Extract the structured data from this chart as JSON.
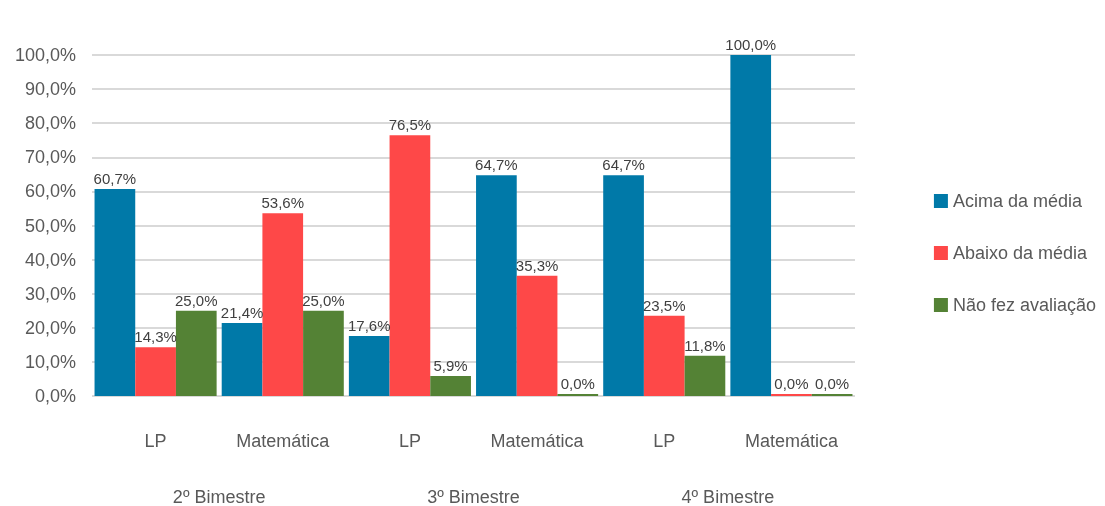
{
  "chart_data": {
    "type": "bar",
    "categories": [
      "LP",
      "Matemática",
      "LP",
      "Matemática",
      "LP",
      "Matemática"
    ],
    "annotations": [
      "2º Bimestre",
      "3º Bimestre",
      "4º Bimestre"
    ],
    "series": [
      {
        "name": "Acima da média",
        "color": "#0079a8",
        "values": [
          60.7,
          21.4,
          17.6,
          64.7,
          64.7,
          100.0
        ],
        "value_labels": [
          "60,7%",
          "21,4%",
          "17,6%",
          "64,7%",
          "64,7%",
          "100,0%"
        ]
      },
      {
        "name": "Abaixo da média",
        "color": "#fe4848",
        "values": [
          14.3,
          53.6,
          76.5,
          35.3,
          23.5,
          0.0
        ],
        "value_labels": [
          "14,3%",
          "53,6%",
          "76,5%",
          "35,3%",
          "23,5%",
          "0,0%"
        ]
      },
      {
        "name": "Não fez avaliação",
        "color": "#548235",
        "values": [
          25.0,
          25.0,
          5.9,
          0.0,
          11.8,
          0.0
        ],
        "value_labels": [
          "25,0%",
          "25,0%",
          "5,9%",
          "0,0%",
          "11,8%",
          "0,0%"
        ]
      }
    ],
    "ylim": [
      0,
      100
    ],
    "yticks": [
      {
        "value": 0,
        "label": "0,0%"
      },
      {
        "value": 10,
        "label": "10,0%"
      },
      {
        "value": 20,
        "label": "20,0%"
      },
      {
        "value": 30,
        "label": "30,0%"
      },
      {
        "value": 40,
        "label": "40,0%"
      },
      {
        "value": 50,
        "label": "50,0%"
      },
      {
        "value": 60,
        "label": "60,0%"
      },
      {
        "value": 70,
        "label": "70,0%"
      },
      {
        "value": 80,
        "label": "80,0%"
      },
      {
        "value": 90,
        "label": "90,0%"
      },
      {
        "value": 100,
        "label": "100,0%"
      }
    ],
    "grid": "y",
    "legend": "right"
  }
}
